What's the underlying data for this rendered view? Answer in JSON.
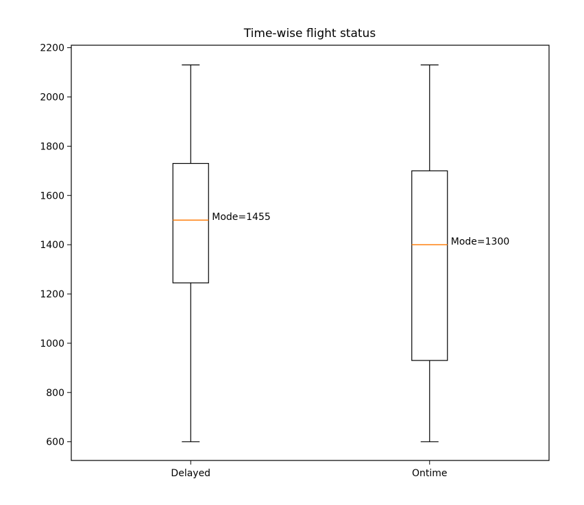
{
  "chart_data": {
    "type": "boxplot",
    "title": "Time-wise flight status",
    "xlabel": "",
    "ylabel": "",
    "categories": [
      "Delayed",
      "Ontime"
    ],
    "boxes": [
      {
        "category": "Delayed",
        "whisker_low": 600,
        "q1": 1245,
        "median": 1500,
        "q3": 1730,
        "whisker_high": 2130,
        "annotation": "Mode=1455"
      },
      {
        "category": "Ontime",
        "whisker_low": 600,
        "q1": 930,
        "median": 1400,
        "q3": 1700,
        "whisker_high": 2130,
        "annotation": "Mode=1300"
      }
    ],
    "yticks": [
      600,
      800,
      1000,
      1200,
      1400,
      1600,
      1800,
      2000,
      2200
    ],
    "ylim": [
      524,
      2210
    ],
    "grid": false,
    "colors": {
      "box": "#000000",
      "median": "#ff7f0e",
      "background": "#ffffff"
    }
  }
}
